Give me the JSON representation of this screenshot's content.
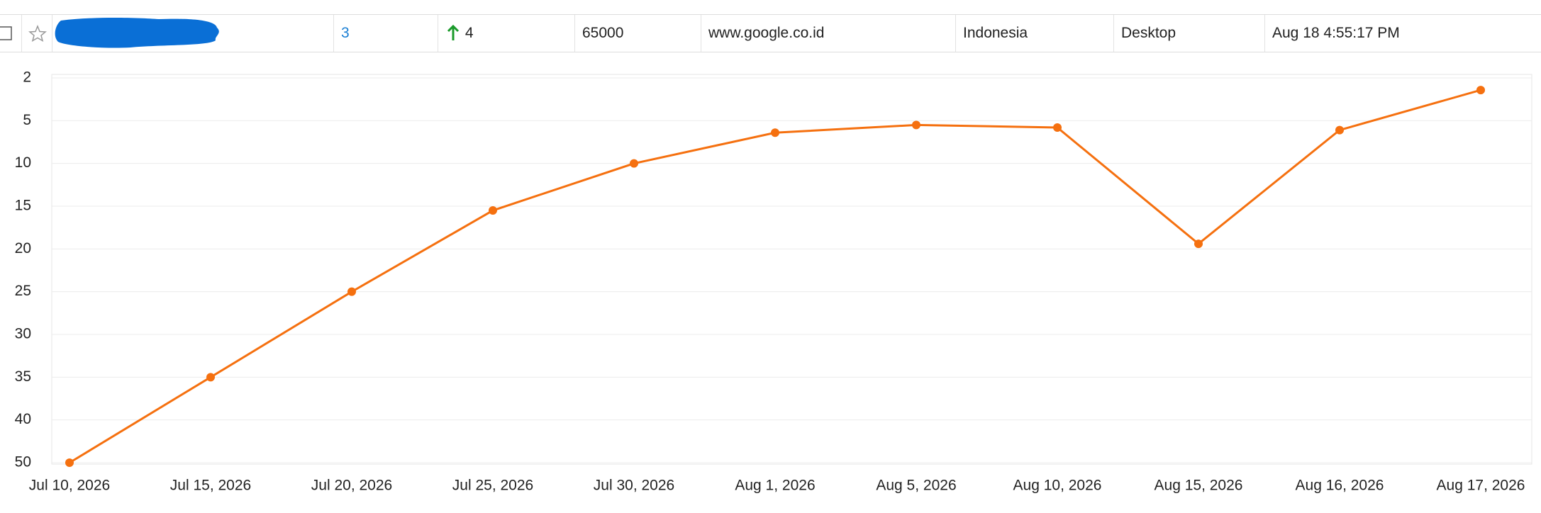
{
  "table_row": {
    "rank": 3,
    "change": 4,
    "volume": 65000,
    "url": "www.google.co.id",
    "country": "Indonesia",
    "device": "Desktop",
    "date": "Aug 18 4:55:17 PM"
  },
  "chart_data": {
    "type": "line",
    "categories": [
      "Jul 10, 2026",
      "Jul 15, 2026",
      "Jul 20, 2026",
      "Jul 25, 2026",
      "Jul 30, 2026",
      "Aug 1, 2026",
      "Aug 5, 2026",
      "Aug 10, 2026",
      "Aug 15, 2026",
      "Aug 16, 2026",
      "Aug 17, 2026"
    ],
    "values": [
      50,
      35,
      25,
      15.5,
      10,
      6.4,
      5.5,
      5.8,
      19.4,
      6.1,
      2.85
    ],
    "color": "#f5700f",
    "ylim": [
      2,
      50
    ],
    "yticks": [
      2,
      5,
      10,
      15,
      20,
      25,
      30,
      35,
      40,
      50
    ],
    "y_reversed": true,
    "grid": true
  }
}
